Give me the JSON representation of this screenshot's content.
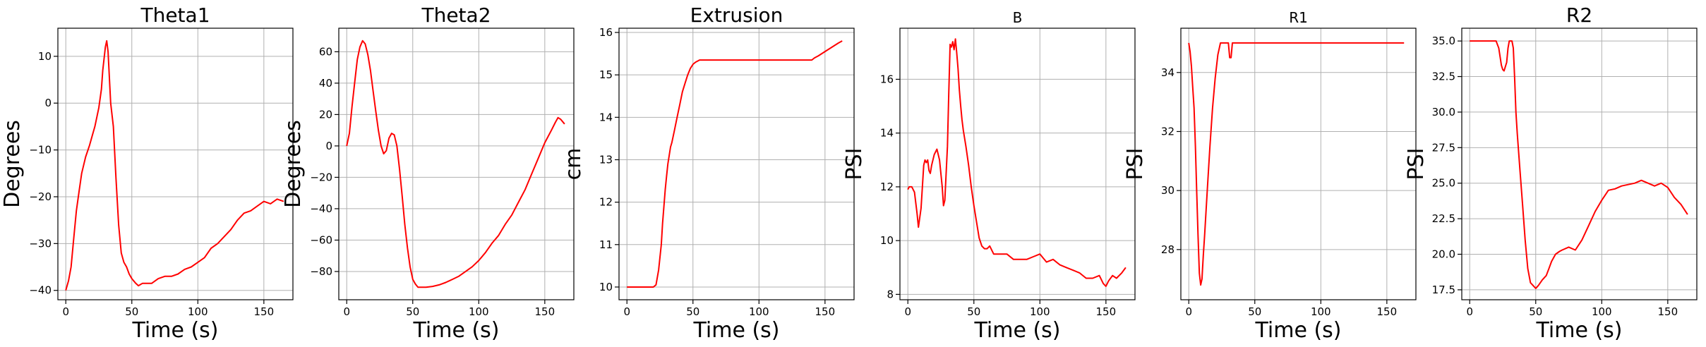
{
  "chart_data": [
    {
      "type": "line",
      "title": "Theta1",
      "xlabel": "Time (s)",
      "ylabel": "Degrees",
      "xlim": [
        -6,
        172
      ],
      "ylim": [
        -42,
        16
      ],
      "xticks": [
        0,
        50,
        100,
        150
      ],
      "yticks": [
        -40,
        -30,
        -20,
        -10,
        0,
        10
      ],
      "grid": true,
      "series": [
        {
          "color": "#ff0000",
          "x": [
            0,
            2,
            4,
            6,
            8,
            10,
            12,
            15,
            18,
            20,
            22,
            25,
            27,
            28,
            30,
            31,
            32,
            34,
            36,
            38,
            40,
            42,
            44,
            46,
            48,
            50,
            53,
            55,
            58,
            60,
            65,
            70,
            75,
            80,
            85,
            90,
            95,
            100,
            105,
            110,
            115,
            120,
            125,
            130,
            135,
            140,
            145,
            150,
            155,
            160,
            165
          ],
          "y": [
            -40,
            -38,
            -35,
            -29,
            -23,
            -19,
            -15,
            -11.5,
            -9,
            -7,
            -5,
            -1,
            3,
            7,
            12,
            13.3,
            11,
            0,
            -5,
            -16,
            -26,
            -32,
            -34,
            -35,
            -36.5,
            -37.5,
            -38.5,
            -39,
            -38.5,
            -38.5,
            -38.5,
            -37.5,
            -37,
            -37,
            -36.5,
            -35.5,
            -35,
            -34,
            -33,
            -31,
            -30,
            -28.5,
            -27,
            -25,
            -23.5,
            -23,
            -22,
            -21,
            -21.5,
            -20.5,
            -21
          ]
        }
      ]
    },
    {
      "type": "line",
      "title": "Theta2",
      "xlabel": "Time (s)",
      "ylabel": "Degrees",
      "xlim": [
        -6,
        172
      ],
      "ylim": [
        -98,
        75
      ],
      "xticks": [
        0,
        50,
        100,
        150
      ],
      "yticks": [
        -80,
        -60,
        -40,
        -20,
        0,
        20,
        40,
        60
      ],
      "grid": true,
      "series": [
        {
          "color": "#ff0000",
          "x": [
            0,
            2,
            4,
            6,
            8,
            10,
            12,
            14,
            16,
            18,
            20,
            22,
            24,
            26,
            28,
            30,
            32,
            34,
            36,
            38,
            40,
            42,
            44,
            46,
            48,
            50,
            52,
            54,
            56,
            58,
            60,
            65,
            70,
            75,
            80,
            85,
            90,
            95,
            100,
            105,
            110,
            115,
            120,
            125,
            130,
            135,
            140,
            145,
            150,
            155,
            158,
            160,
            162,
            165
          ],
          "y": [
            0,
            8,
            25,
            40,
            55,
            63,
            67,
            65,
            58,
            48,
            35,
            22,
            10,
            0,
            -5,
            -3,
            5,
            8,
            7,
            0,
            -15,
            -32,
            -50,
            -65,
            -77,
            -85,
            -88,
            -90,
            -90,
            -90,
            -90,
            -89.5,
            -88.5,
            -87,
            -85,
            -83,
            -80,
            -77,
            -73,
            -68,
            -62,
            -57,
            -50,
            -44,
            -36,
            -28,
            -18,
            -8,
            2,
            10,
            15,
            18,
            17,
            14
          ]
        }
      ]
    },
    {
      "type": "line",
      "title": "Extrusion",
      "xlabel": "Time (s)",
      "ylabel": "cm",
      "xlim": [
        -6,
        172
      ],
      "ylim": [
        9.7,
        16.1
      ],
      "xticks": [
        0,
        50,
        100,
        150
      ],
      "yticks": [
        10,
        11,
        12,
        13,
        14,
        15,
        16
      ],
      "grid": true,
      "series": [
        {
          "color": "#ff0000",
          "x": [
            0,
            5,
            10,
            15,
            20,
            22,
            24,
            26,
            27,
            28,
            29,
            30,
            31,
            32,
            33,
            34,
            36,
            38,
            40,
            42,
            44,
            46,
            48,
            50,
            52,
            55,
            58,
            60,
            70,
            80,
            100,
            120,
            140,
            142,
            145,
            150,
            155,
            160,
            163
          ],
          "y": [
            10,
            10,
            10,
            10,
            10,
            10.05,
            10.4,
            11.0,
            11.5,
            11.9,
            12.3,
            12.6,
            12.9,
            13.1,
            13.3,
            13.4,
            13.7,
            14.0,
            14.3,
            14.6,
            14.8,
            15.0,
            15.15,
            15.25,
            15.3,
            15.35,
            15.35,
            15.35,
            15.35,
            15.35,
            15.35,
            15.35,
            15.35,
            15.4,
            15.45,
            15.55,
            15.65,
            15.75,
            15.8
          ]
        }
      ]
    },
    {
      "type": "line",
      "title": "B",
      "xlabel": "Time (s)",
      "ylabel": "PSI",
      "xlim": [
        -6,
        172
      ],
      "ylim": [
        7.8,
        17.9
      ],
      "xticks": [
        0,
        50,
        100,
        150
      ],
      "yticks": [
        8,
        10,
        12,
        14,
        16
      ],
      "grid": true,
      "series": [
        {
          "color": "#ff0000",
          "x": [
            0,
            1,
            3,
            5,
            7,
            8,
            10,
            12,
            13,
            14,
            15,
            16,
            17,
            18,
            20,
            22,
            24,
            26,
            27,
            28,
            30,
            31,
            32,
            33,
            34,
            35,
            36,
            37,
            38,
            39,
            40,
            41,
            42,
            44,
            46,
            48,
            50,
            52,
            54,
            56,
            58,
            60,
            62,
            65,
            70,
            75,
            80,
            85,
            90,
            95,
            100,
            105,
            110,
            115,
            120,
            125,
            130,
            135,
            140,
            145,
            148,
            150,
            152,
            155,
            158,
            162,
            165
          ],
          "y": [
            11.9,
            12.0,
            12.0,
            11.8,
            11.0,
            10.5,
            11.2,
            12.8,
            13.0,
            12.9,
            13.0,
            12.6,
            12.5,
            12.8,
            13.2,
            13.4,
            13.0,
            12.0,
            11.3,
            11.5,
            13.5,
            15.5,
            17.3,
            17.2,
            17.4,
            17.1,
            17.5,
            17.0,
            16.4,
            15.6,
            15.0,
            14.5,
            14.1,
            13.5,
            12.8,
            12.0,
            11.3,
            10.7,
            10.1,
            9.8,
            9.7,
            9.7,
            9.8,
            9.5,
            9.5,
            9.5,
            9.3,
            9.3,
            9.3,
            9.4,
            9.5,
            9.2,
            9.3,
            9.1,
            9.0,
            8.9,
            8.8,
            8.6,
            8.6,
            8.7,
            8.4,
            8.3,
            8.5,
            8.7,
            8.6,
            8.8,
            9.0
          ]
        }
      ]
    },
    {
      "type": "line",
      "title": "R1",
      "xlabel": "Time (s)",
      "ylabel": "PSI",
      "xlim": [
        -6,
        172
      ],
      "ylim": [
        26.3,
        35.5
      ],
      "xticks": [
        0,
        50,
        100,
        150
      ],
      "yticks": [
        28,
        30,
        32,
        34
      ],
      "grid": true,
      "series": [
        {
          "color": "#ff0000",
          "x": [
            0,
            1,
            2,
            3,
            4,
            5,
            6,
            7,
            8,
            9,
            10,
            11,
            12,
            14,
            16,
            18,
            20,
            22,
            24,
            25,
            26,
            28,
            30,
            31,
            32,
            33,
            34,
            36,
            40,
            50,
            80,
            100,
            120,
            140,
            160,
            163
          ],
          "y": [
            35,
            34.7,
            34.2,
            33.5,
            32.8,
            31.5,
            30.0,
            28.5,
            27.2,
            26.8,
            27.0,
            27.8,
            28.5,
            30.0,
            31.5,
            32.8,
            33.8,
            34.6,
            35,
            35,
            35,
            35,
            35,
            34.5,
            34.5,
            35,
            35,
            35,
            35,
            35,
            35,
            35,
            35,
            35,
            35,
            35
          ]
        }
      ]
    },
    {
      "type": "line",
      "title": "R2",
      "xlabel": "Time (s)",
      "ylabel": "PSI",
      "xlim": [
        -6,
        172
      ],
      "ylim": [
        16.8,
        35.9
      ],
      "xticks": [
        0,
        50,
        100,
        150
      ],
      "yticks": [
        17.5,
        20.0,
        22.5,
        25.0,
        27.5,
        30.0,
        32.5,
        35.0
      ],
      "grid": true,
      "series": [
        {
          "color": "#ff0000",
          "x": [
            0,
            5,
            10,
            15,
            20,
            22,
            24,
            25,
            26,
            28,
            29,
            30,
            32,
            33,
            34,
            35,
            36,
            38,
            40,
            42,
            44,
            46,
            48,
            50,
            52,
            55,
            58,
            60,
            62,
            65,
            68,
            70,
            75,
            80,
            85,
            90,
            95,
            100,
            105,
            110,
            115,
            120,
            125,
            130,
            135,
            140,
            145,
            150,
            155,
            160,
            165
          ],
          "y": [
            35,
            35,
            35,
            35,
            35,
            34.5,
            33.3,
            33.0,
            32.9,
            33.5,
            34.5,
            35,
            35,
            34.5,
            32.5,
            30.0,
            28.5,
            26.0,
            23.5,
            21.0,
            19.0,
            18.0,
            17.8,
            17.6,
            17.8,
            18.2,
            18.5,
            19.0,
            19.5,
            20.0,
            20.2,
            20.3,
            20.5,
            20.3,
            21.0,
            22.0,
            23.0,
            23.8,
            24.5,
            24.6,
            24.8,
            24.9,
            25.0,
            25.2,
            25.0,
            24.8,
            25.0,
            24.7,
            24.0,
            23.5,
            22.8
          ]
        }
      ]
    }
  ]
}
